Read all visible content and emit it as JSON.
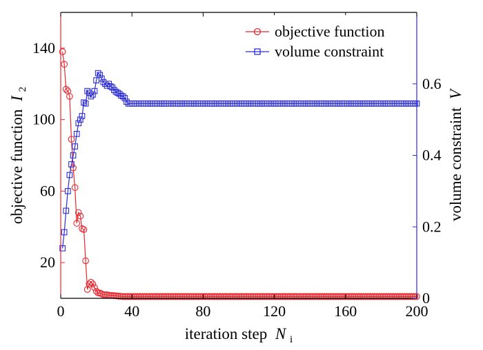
{
  "chart_data": {
    "type": "line",
    "title": "",
    "xlabel": "iteration step",
    "xlabel_symbol": "N",
    "xlabel_subscript": "i",
    "ylabel_left": "objective function",
    "ylabel_left_symbol": "I",
    "ylabel_left_subscript": "2",
    "ylabel_right": "volume constraint",
    "ylabel_right_symbol": "V",
    "xlim": [
      0,
      200
    ],
    "ylim_left": [
      0,
      160
    ],
    "ylim_right": [
      0,
      0.8
    ],
    "x_ticks": [
      0,
      40,
      80,
      120,
      160,
      200
    ],
    "x_tick_labels": [
      "0",
      "40",
      "80",
      "120",
      "160",
      "200"
    ],
    "y_left_ticks": [
      20,
      60,
      100,
      140
    ],
    "y_left_tick_labels": [
      "20",
      "60",
      "100",
      "140"
    ],
    "y_right_ticks": [
      0,
      0.2,
      0.4,
      0.6
    ],
    "y_right_tick_labels": [
      "0",
      "0.2",
      "0.4",
      "0.6"
    ],
    "grid": false,
    "legend_position": "top-right",
    "series": [
      {
        "name": "objective function",
        "axis": "left",
        "color": "#e8252c",
        "marker": "circle",
        "x": [
          1,
          2,
          3,
          4,
          5,
          6,
          7,
          8,
          9,
          10,
          11,
          12,
          13,
          14,
          15,
          16,
          17,
          18,
          19,
          20,
          21,
          22,
          23,
          24,
          25,
          26,
          27,
          28,
          29,
          30,
          31,
          32,
          33,
          34,
          35,
          36,
          37,
          38,
          39,
          40
        ],
        "y": [
          138,
          131,
          117,
          116,
          113,
          89,
          73,
          62,
          42,
          48,
          46,
          39,
          38.5,
          21,
          5,
          8,
          9,
          8,
          6,
          4,
          3,
          3,
          2.5,
          2,
          2,
          2,
          1.8,
          1.6,
          1.6,
          1.5,
          1.4,
          1.3,
          1.2,
          1.1,
          1,
          1,
          1,
          1,
          1,
          1
        ],
        "tail_start": 41,
        "tail_end": 200,
        "tail_value": 1
      },
      {
        "name": "volume constraint",
        "axis": "right",
        "color": "#2b2bd6",
        "marker": "square",
        "x": [
          1,
          2,
          3,
          4,
          5,
          6,
          7,
          8,
          9,
          10,
          11,
          12,
          13,
          14,
          15,
          16,
          17,
          18,
          19,
          20,
          21,
          22,
          23,
          24,
          25,
          26,
          27,
          28,
          29,
          30,
          31,
          32,
          33,
          34,
          35,
          36,
          37,
          38,
          39,
          40
        ],
        "y": [
          0.14,
          0.185,
          0.245,
          0.3,
          0.345,
          0.375,
          0.4,
          0.425,
          0.46,
          0.49,
          0.5,
          0.51,
          0.548,
          0.545,
          0.58,
          0.575,
          0.565,
          0.57,
          0.58,
          0.61,
          0.63,
          0.625,
          0.615,
          0.605,
          0.6,
          0.595,
          0.6,
          0.593,
          0.59,
          0.583,
          0.578,
          0.575,
          0.572,
          0.567,
          0.565,
          0.56,
          0.55,
          0.545,
          0.545,
          0.545
        ],
        "tail_start": 41,
        "tail_end": 200,
        "tail_value": 0.545
      }
    ]
  }
}
